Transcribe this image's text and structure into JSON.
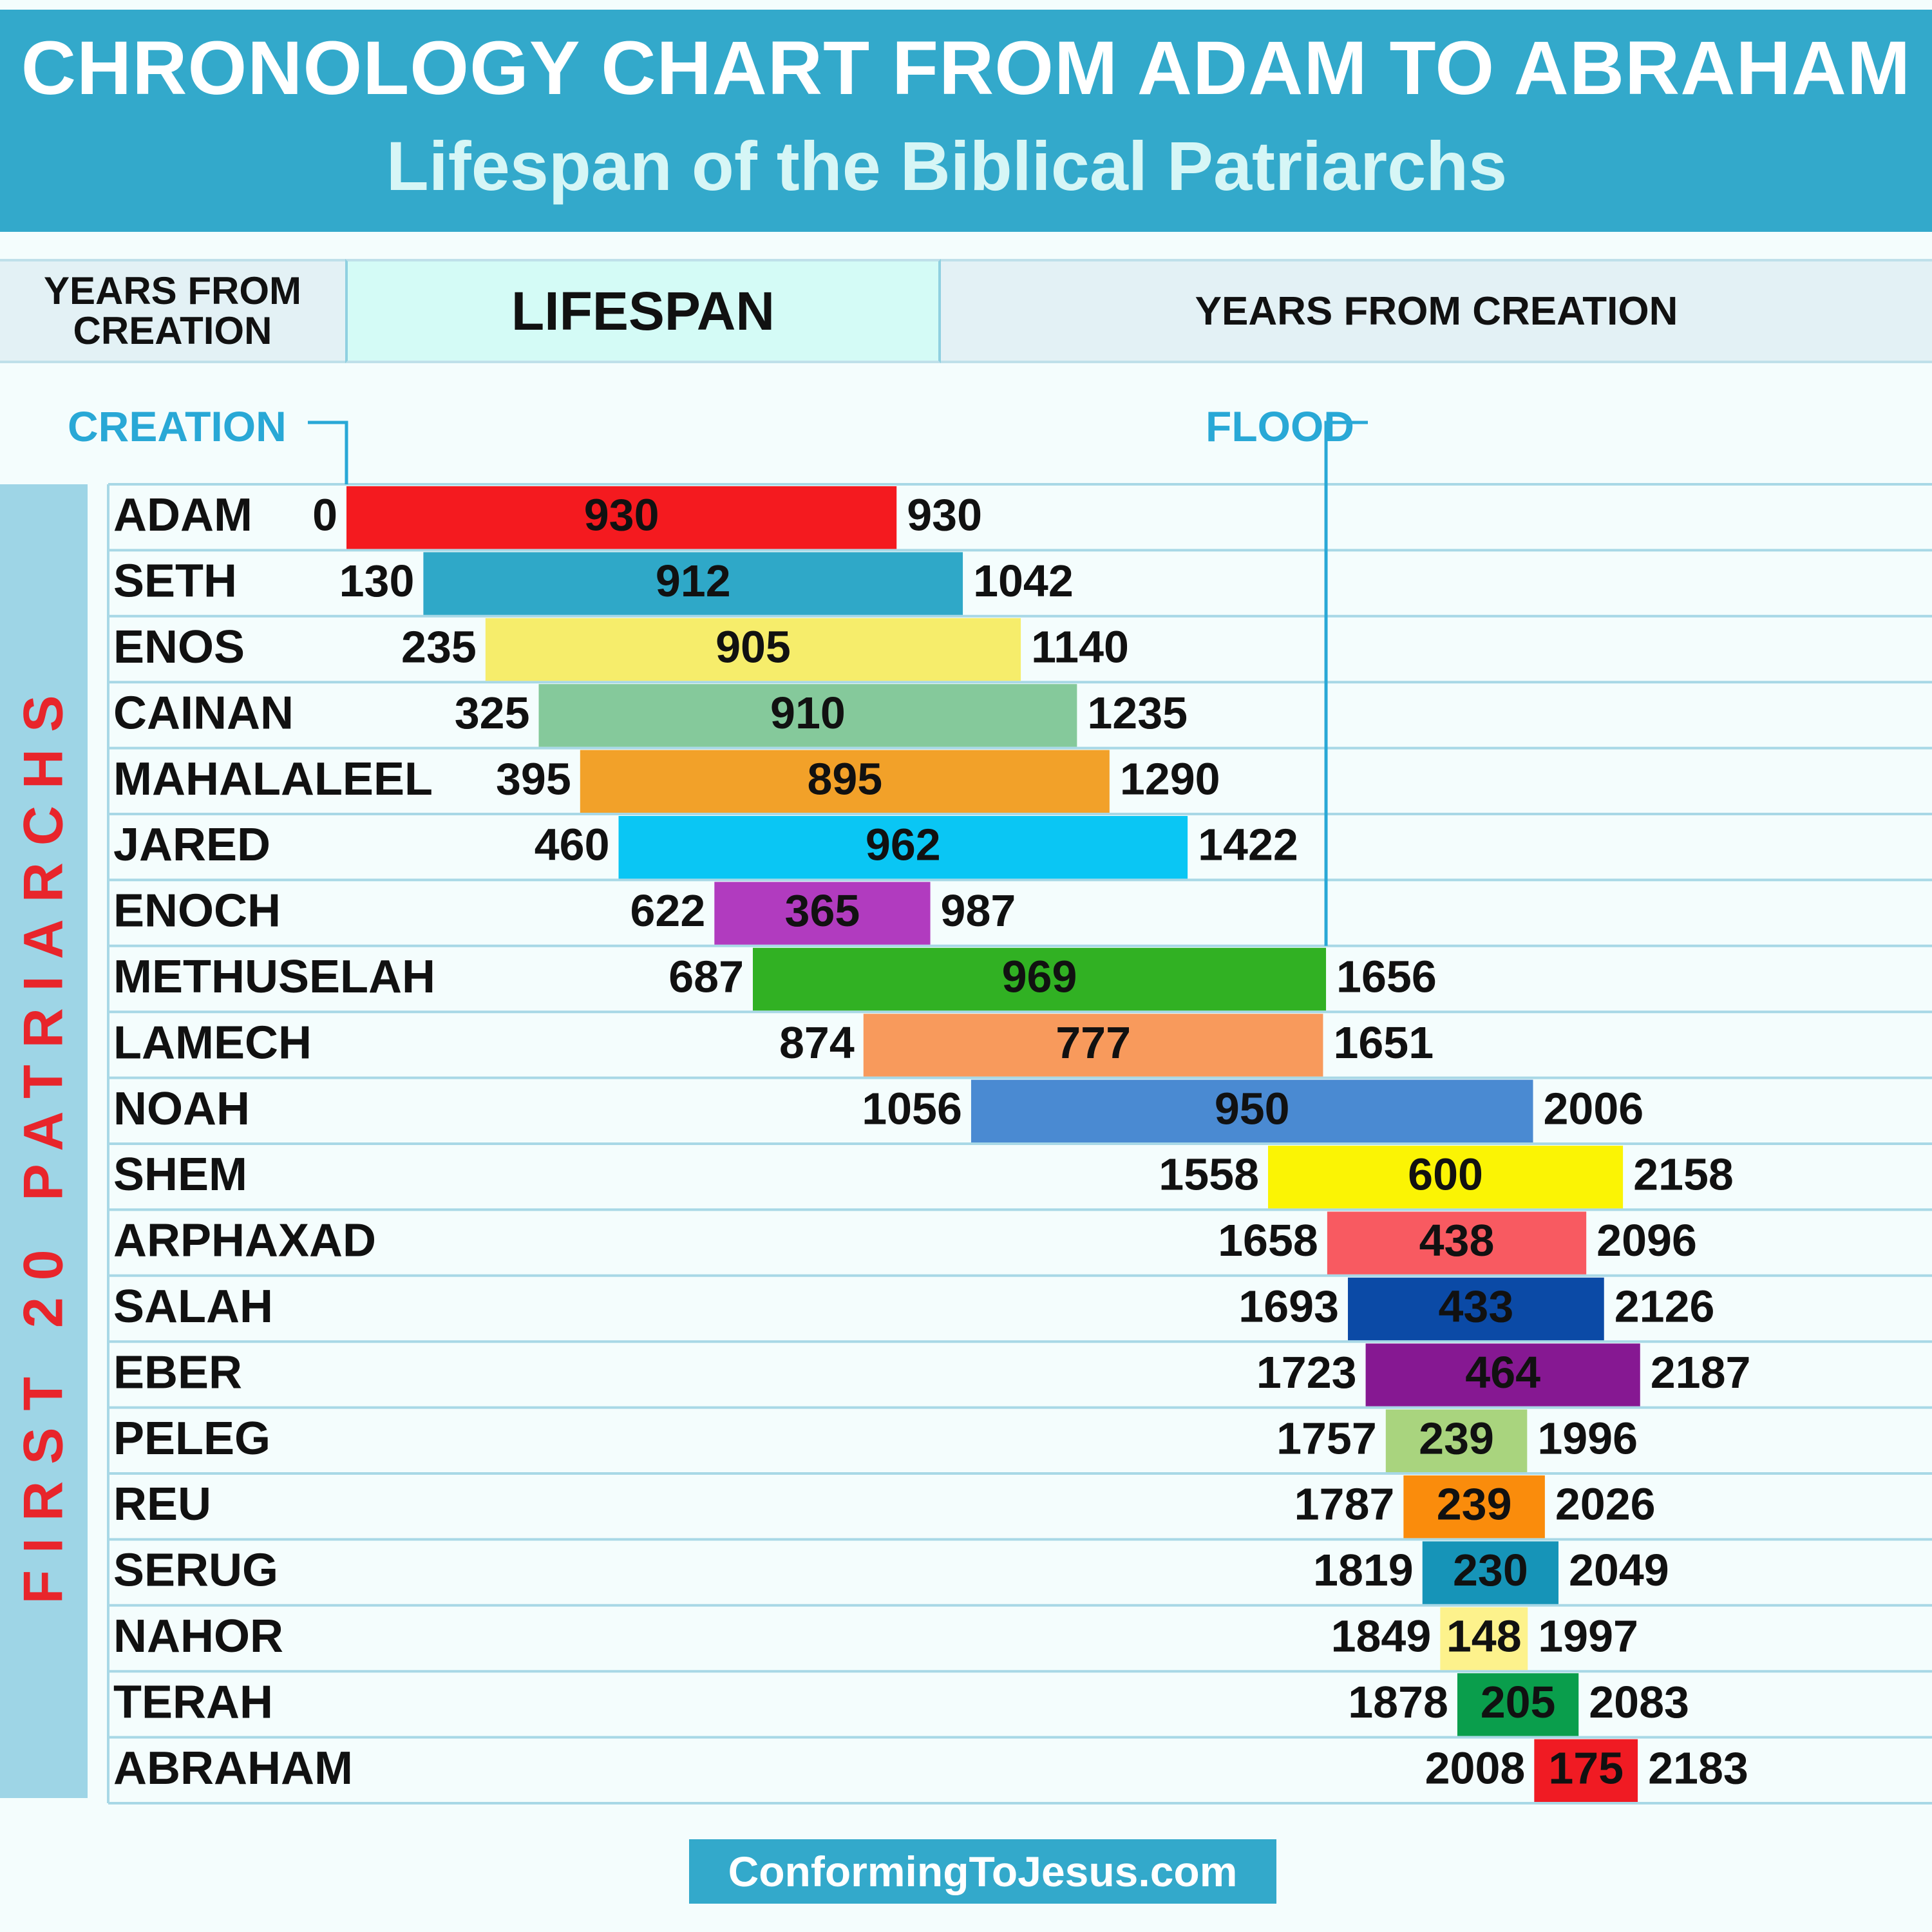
{
  "header": {
    "title": "CHRONOLOGY CHART FROM ADAM TO ABRAHAM",
    "subtitle": "Lifespan of the Biblical Patriarchs"
  },
  "columns": {
    "left": "YEARS FROM CREATION",
    "middle": "LIFESPAN",
    "right": "YEARS FROM CREATION"
  },
  "markers": {
    "creation": "CREATION",
    "flood": "FLOOD"
  },
  "sidebar_label": "FIRST 20 PATRIARCHS",
  "footer": "ConformingToJesus.com",
  "chart_data": {
    "type": "bar",
    "orientation": "horizontal",
    "x_axis": "years from creation",
    "xlim": [
      0,
      2500
    ],
    "rows": [
      {
        "name": "ADAM",
        "start": 0,
        "lifespan": 930,
        "end": 930,
        "color": "#f41a1f"
      },
      {
        "name": "SETH",
        "start": 130,
        "lifespan": 912,
        "end": 1042,
        "color": "#2fa8c8"
      },
      {
        "name": "ENOS",
        "start": 235,
        "lifespan": 905,
        "end": 1140,
        "color": "#f6ed6b"
      },
      {
        "name": "CAINAN",
        "start": 325,
        "lifespan": 910,
        "end": 1235,
        "color": "#85c99b"
      },
      {
        "name": "MAHALALEEL",
        "start": 395,
        "lifespan": 895,
        "end": 1290,
        "color": "#f2a129"
      },
      {
        "name": "JARED",
        "start": 460,
        "lifespan": 962,
        "end": 1422,
        "color": "#0ac6f4"
      },
      {
        "name": "ENOCH",
        "start": 622,
        "lifespan": 365,
        "end": 987,
        "color": "#b13bbf"
      },
      {
        "name": "METHUSELAH",
        "start": 687,
        "lifespan": 969,
        "end": 1656,
        "color": "#31b123"
      },
      {
        "name": "LAMECH",
        "start": 874,
        "lifespan": 777,
        "end": 1651,
        "color": "#f89a5c"
      },
      {
        "name": "NOAH",
        "start": 1056,
        "lifespan": 950,
        "end": 2006,
        "color": "#4a8ad2"
      },
      {
        "name": "SHEM",
        "start": 1558,
        "lifespan": 600,
        "end": 2158,
        "color": "#fbf404"
      },
      {
        "name": "ARPHAXAD",
        "start": 1658,
        "lifespan": 438,
        "end": 2096,
        "color": "#f85a61"
      },
      {
        "name": "SALAH",
        "start": 1693,
        "lifespan": 433,
        "end": 2126,
        "color": "#0b4aa6"
      },
      {
        "name": "EBER",
        "start": 1723,
        "lifespan": 464,
        "end": 2187,
        "color": "#861892"
      },
      {
        "name": "PELEG",
        "start": 1757,
        "lifespan": 239,
        "end": 1996,
        "color": "#a9d47e"
      },
      {
        "name": "REU",
        "start": 1787,
        "lifespan": 239,
        "end": 2026,
        "color": "#fa8c0c"
      },
      {
        "name": "SERUG",
        "start": 1819,
        "lifespan": 230,
        "end": 2049,
        "color": "#1694b8"
      },
      {
        "name": "NAHOR",
        "start": 1849,
        "lifespan": 148,
        "end": 1997,
        "color": "#fdf28c"
      },
      {
        "name": "TERAH",
        "start": 1878,
        "lifespan": 205,
        "end": 2083,
        "color": "#0a9e4c"
      },
      {
        "name": "ABRAHAM",
        "start": 2008,
        "lifespan": 175,
        "end": 2183,
        "color": "#f01b23"
      }
    ],
    "flood_year": 1656
  }
}
